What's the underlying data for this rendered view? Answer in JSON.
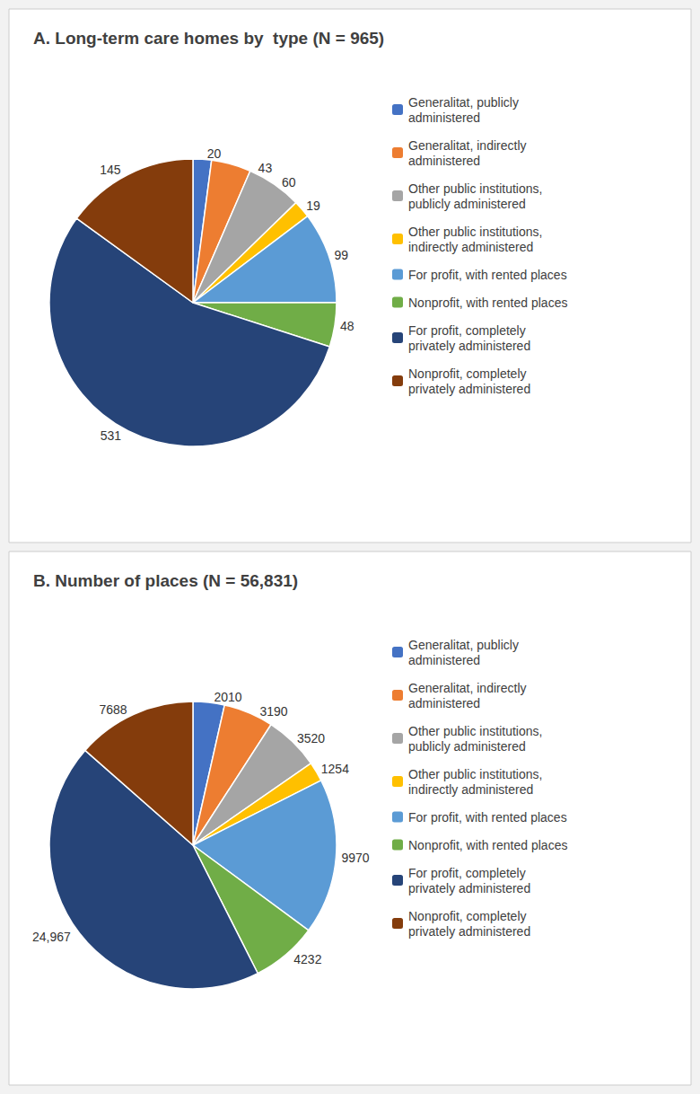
{
  "chart_data": [
    {
      "type": "pie",
      "title": "A. Long-term care homes by  type (N = 965)",
      "categories": [
        "Generalitat, publicly\nadministered",
        "Generalitat, indirectly\nadministered",
        "Other public institutions,\npublicly administered",
        "Other public institutions,\nindirectly administered",
        "For profit, with rented places",
        "Nonprofit, with rented places",
        "For profit, completely\nprivately administered",
        "Nonprofit, completely\nprivately administered"
      ],
      "values": [
        20,
        43,
        60,
        19,
        99,
        48,
        531,
        145
      ],
      "colors": [
        "#4472C4",
        "#ED7D31",
        "#A5A5A5",
        "#FFC000",
        "#5B9BD5",
        "#70AD47",
        "#264478",
        "#843C0C"
      ],
      "data_labels": true,
      "legend": "right"
    },
    {
      "type": "pie",
      "title": "B. Number of places (N = 56,831)",
      "categories": [
        "Generalitat, publicly\nadministered",
        "Generalitat, indirectly\nadministered",
        "Other public institutions,\npublicly administered",
        "Other public institutions,\nindirectly administered",
        "For profit, with rented places",
        "Nonprofit, with rented places",
        "For profit, completely\nprivately administered",
        "Nonprofit, completely\nprivately administered"
      ],
      "values": [
        2010,
        3190,
        3520,
        1254,
        9970,
        4232,
        24967,
        7688
      ],
      "value_labels": [
        "2010",
        "3190",
        "3520",
        "1254",
        "9970",
        "4232",
        "24,967",
        "7688"
      ],
      "colors": [
        "#4472C4",
        "#ED7D31",
        "#A5A5A5",
        "#FFC000",
        "#5B9BD5",
        "#70AD47",
        "#264478",
        "#843C0C"
      ],
      "data_labels": true,
      "legend": "right"
    }
  ]
}
